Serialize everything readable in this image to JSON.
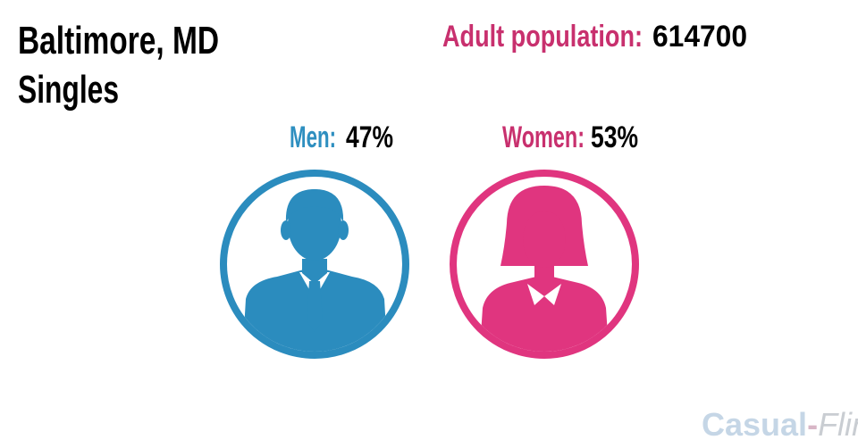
{
  "header": {
    "title": "Baltimore, MD",
    "subtitle": "Singles"
  },
  "population": {
    "label": "Adult population:",
    "value": "614700"
  },
  "men": {
    "label": "Men:",
    "value": "47%"
  },
  "women": {
    "label": "Women:",
    "value": "53%"
  },
  "logo": {
    "part1": "Casual",
    "separator": "-",
    "part2": "Flirt"
  }
}
